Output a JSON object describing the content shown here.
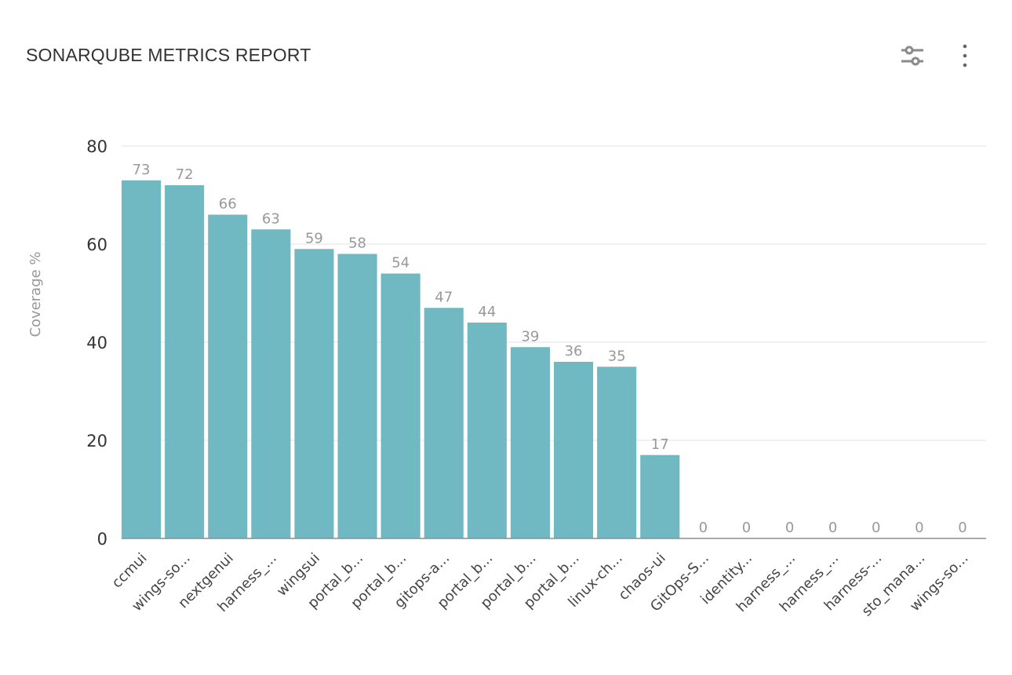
{
  "header": {
    "title": "SONARQUBE METRICS REPORT",
    "filter_icon": "sliders-icon",
    "menu_icon": "more-vertical-icon"
  },
  "chart_data": {
    "type": "bar",
    "title": "",
    "xlabel": "",
    "ylabel": "Coverage %",
    "ylim": [
      0,
      80
    ],
    "yticks": [
      0,
      20,
      40,
      60,
      80
    ],
    "grid": true,
    "bar_color": "#70b8c2",
    "categories": [
      "ccmui",
      "wings-so...",
      "nextgenui",
      "harness_...",
      "wingsui",
      "portal_b...",
      "portal_b...",
      "gitops-a...",
      "portal_b...",
      "portal_b...",
      "portal_b...",
      "linux-ch...",
      "chaos-ui",
      "GitOps-S...",
      "identity...",
      "harness_...",
      "harness_...",
      "harness-...",
      "sto_mana...",
      "wings-so..."
    ],
    "values": [
      73,
      72,
      66,
      63,
      59,
      58,
      54,
      47,
      44,
      39,
      36,
      35,
      17,
      0,
      0,
      0,
      0,
      0,
      0,
      0
    ]
  }
}
